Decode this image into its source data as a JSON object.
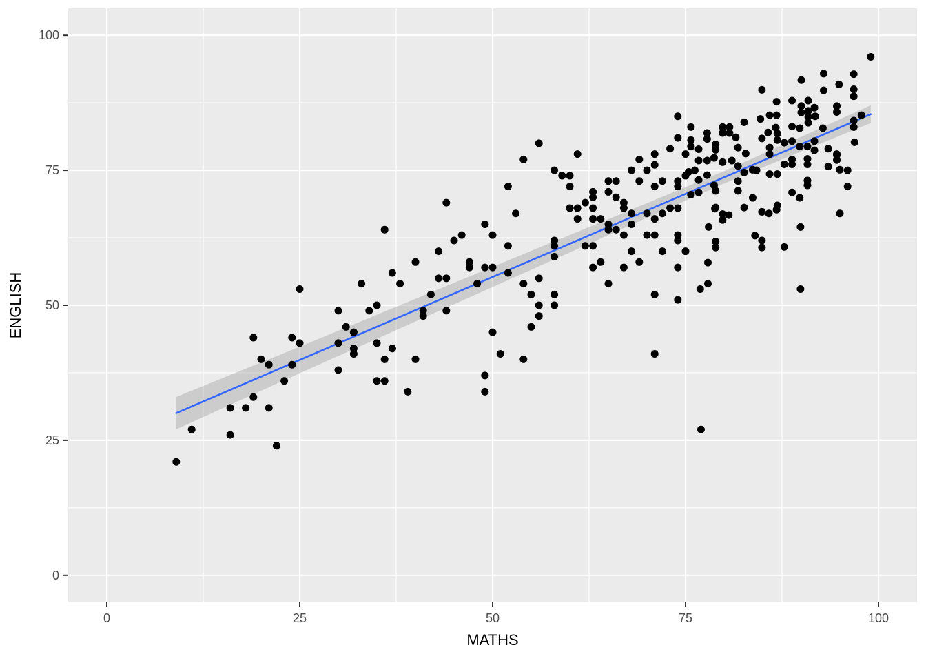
{
  "chart_data": {
    "type": "scatter",
    "title": "",
    "xlabel": "MATHS",
    "ylabel": "ENGLISH",
    "xlim": [
      -5,
      105
    ],
    "ylim": [
      -5,
      105
    ],
    "x_ticks": [
      0,
      25,
      50,
      75,
      100
    ],
    "y_ticks": [
      0,
      25,
      50,
      75,
      100
    ],
    "x_minor": [
      12.5,
      37.5,
      62.5,
      87.5
    ],
    "y_minor": [
      12.5,
      37.5,
      62.5,
      87.5
    ],
    "grid": true,
    "legend_position": "none",
    "colors": {
      "panel_bg": "#EBEBEB",
      "grid": "#FFFFFF",
      "point": "#000000",
      "smooth_line": "#3366FF",
      "ci_band": "#9B9B9B",
      "tick_mark": "#333333",
      "tick_text": "#4D4D4D",
      "axis_title": "#000000"
    },
    "smooth": {
      "model": "linear",
      "intercept": 24.5,
      "slope": 0.615,
      "x_start": 9,
      "x_end": 99,
      "band_opacity": 0.38,
      "band_half_widths": [
        [
          9,
          3.0
        ],
        [
          25,
          2.45
        ],
        [
          40,
          2.1
        ],
        [
          55,
          1.75
        ],
        [
          70,
          1.35
        ],
        [
          80,
          1.15
        ],
        [
          90,
          1.35
        ],
        [
          99,
          1.65
        ]
      ]
    },
    "points": [
      [
        9,
        21
      ],
      [
        11,
        27
      ],
      [
        16,
        26
      ],
      [
        16,
        31
      ],
      [
        18,
        31
      ],
      [
        19,
        33
      ],
      [
        19,
        44
      ],
      [
        20,
        40
      ],
      [
        21,
        39
      ],
      [
        21,
        31
      ],
      [
        22,
        24
      ],
      [
        23,
        36
      ],
      [
        24,
        44
      ],
      [
        24,
        39
      ],
      [
        25,
        43
      ],
      [
        30,
        49
      ],
      [
        30,
        43
      ],
      [
        30,
        38
      ],
      [
        31,
        46
      ],
      [
        32,
        45
      ],
      [
        32,
        42
      ],
      [
        32,
        41
      ],
      [
        25,
        53
      ],
      [
        33,
        54
      ],
      [
        34,
        49
      ],
      [
        35,
        50
      ],
      [
        35,
        43
      ],
      [
        35,
        36
      ],
      [
        36,
        64
      ],
      [
        36,
        40
      ],
      [
        36,
        36
      ],
      [
        37,
        56
      ],
      [
        37,
        42
      ],
      [
        38,
        54
      ],
      [
        39,
        34
      ],
      [
        40,
        58
      ],
      [
        40,
        40
      ],
      [
        41,
        49
      ],
      [
        41,
        48
      ],
      [
        42,
        52
      ],
      [
        43,
        60
      ],
      [
        43,
        55
      ],
      [
        44,
        69
      ],
      [
        44,
        55
      ],
      [
        44,
        49
      ],
      [
        45,
        62
      ],
      [
        46,
        63
      ],
      [
        47,
        58
      ],
      [
        47,
        57
      ],
      [
        48,
        54
      ],
      [
        49,
        65
      ],
      [
        49,
        57
      ],
      [
        49,
        37
      ],
      [
        49,
        34
      ],
      [
        50,
        63
      ],
      [
        50,
        57
      ],
      [
        50,
        45
      ],
      [
        51,
        41
      ],
      [
        52,
        72
      ],
      [
        52,
        61
      ],
      [
        52,
        56
      ],
      [
        53,
        67
      ],
      [
        54,
        77
      ],
      [
        54,
        54
      ],
      [
        54,
        40
      ],
      [
        55,
        52
      ],
      [
        55,
        46
      ],
      [
        56,
        80
      ],
      [
        56,
        55
      ],
      [
        56,
        50
      ],
      [
        56,
        48
      ],
      [
        58,
        75
      ],
      [
        58,
        62
      ],
      [
        58,
        61
      ],
      [
        58,
        59
      ],
      [
        58,
        52
      ],
      [
        58,
        50
      ],
      [
        59,
        74
      ],
      [
        60,
        74
      ],
      [
        60,
        72
      ],
      [
        60,
        68
      ],
      [
        61,
        78
      ],
      [
        61,
        68
      ],
      [
        61,
        66
      ],
      [
        62,
        69
      ],
      [
        62,
        61
      ],
      [
        63,
        71
      ],
      [
        63,
        70
      ],
      [
        63,
        68
      ],
      [
        63,
        66
      ],
      [
        63,
        61
      ],
      [
        63,
        57
      ],
      [
        64,
        66
      ],
      [
        64,
        58
      ],
      [
        65,
        73
      ],
      [
        65,
        71
      ],
      [
        65,
        65
      ],
      [
        65,
        64
      ],
      [
        65,
        54
      ],
      [
        66,
        73
      ],
      [
        66,
        70
      ],
      [
        66,
        64
      ],
      [
        67,
        69
      ],
      [
        67,
        68
      ],
      [
        67,
        63
      ],
      [
        67,
        57
      ],
      [
        68,
        75
      ],
      [
        68,
        67
      ],
      [
        68,
        65
      ],
      [
        68,
        60
      ],
      [
        69,
        77
      ],
      [
        69,
        73
      ],
      [
        69,
        58
      ],
      [
        70,
        75
      ],
      [
        70,
        67
      ],
      [
        70,
        63
      ],
      [
        71,
        78
      ],
      [
        71,
        76
      ],
      [
        71,
        72
      ],
      [
        71,
        66
      ],
      [
        71,
        63
      ],
      [
        71,
        52
      ],
      [
        71,
        41
      ],
      [
        72,
        73
      ],
      [
        72,
        67
      ],
      [
        72,
        60
      ],
      [
        73,
        79
      ],
      [
        73,
        68
      ],
      [
        74,
        85
      ],
      [
        74,
        81
      ],
      [
        74,
        73
      ],
      [
        74,
        72
      ],
      [
        74,
        68
      ],
      [
        74,
        63
      ],
      [
        74,
        62
      ],
      [
        74,
        57
      ],
      [
        74,
        51
      ],
      [
        75,
        78
      ],
      [
        75,
        74
      ],
      [
        75,
        60
      ],
      [
        77,
        27
      ],
      [
        75.4,
        74.7
      ],
      [
        75.7,
        83
      ],
      [
        75.7,
        80.6
      ],
      [
        75.7,
        79.4
      ],
      [
        75.7,
        70.5
      ],
      [
        76.2,
        75
      ],
      [
        76.7,
        78.9
      ],
      [
        76.7,
        76.8
      ],
      [
        76.7,
        73.2
      ],
      [
        76.7,
        70.9
      ],
      [
        76.9,
        53
      ],
      [
        77.8,
        81.9
      ],
      [
        77.8,
        80.8
      ],
      [
        77.8,
        76.8
      ],
      [
        77.8,
        74.1
      ],
      [
        77.9,
        57.9
      ],
      [
        77.9,
        54
      ],
      [
        78,
        64.5
      ],
      [
        78.7,
        77.3
      ],
      [
        78.7,
        72.2
      ],
      [
        78.8,
        67.9
      ],
      [
        78.9,
        79.8
      ],
      [
        78.9,
        78.8
      ],
      [
        78.9,
        71.2
      ],
      [
        78.9,
        68.1
      ],
      [
        78.9,
        61.8
      ],
      [
        78.9,
        60.7
      ],
      [
        79.8,
        83
      ],
      [
        79.8,
        81.9
      ],
      [
        79.8,
        76.5
      ],
      [
        79.8,
        66.9
      ],
      [
        79.8,
        65.8
      ],
      [
        80.6,
        66.7
      ],
      [
        80.7,
        83
      ],
      [
        80.7,
        81.9
      ],
      [
        81,
        76.8
      ],
      [
        81.5,
        81.1
      ],
      [
        81.8,
        79.2
      ],
      [
        81.8,
        75.8
      ],
      [
        81.8,
        73
      ],
      [
        81.8,
        71.2
      ],
      [
        82.6,
        83.9
      ],
      [
        82.6,
        74.6
      ],
      [
        82.6,
        68.1
      ],
      [
        82.8,
        78.1
      ],
      [
        83.7,
        75.1
      ],
      [
        83.7,
        69.9
      ],
      [
        84,
        62.9
      ],
      [
        84.2,
        75
      ],
      [
        84.7,
        84.5
      ],
      [
        84.9,
        80.9
      ],
      [
        84.9,
        67.3
      ],
      [
        84.9,
        62
      ],
      [
        84.9,
        60.7
      ],
      [
        85.8,
        67
      ],
      [
        85.7,
        82
      ],
      [
        85.9,
        79.2
      ],
      [
        85.9,
        78
      ],
      [
        85.9,
        74.3
      ],
      [
        86.7,
        82.9
      ],
      [
        86.8,
        67.7
      ],
      [
        86.9,
        81.8
      ],
      [
        86.9,
        80.6
      ],
      [
        86.9,
        74.3
      ],
      [
        86.9,
        68.5
      ],
      [
        87.8,
        80.1
      ],
      [
        87.8,
        76.1
      ],
      [
        87.8,
        60.8
      ],
      [
        88.8,
        83.1
      ],
      [
        88.8,
        80.4
      ],
      [
        88.8,
        77
      ],
      [
        88.8,
        76.1
      ],
      [
        88.8,
        70.9
      ],
      [
        89.8,
        82.8
      ],
      [
        89.8,
        79.4
      ],
      [
        89.8,
        69.9
      ],
      [
        89.9,
        64.5
      ],
      [
        89.9,
        53
      ],
      [
        90.8,
        79.4
      ],
      [
        90.8,
        77.1
      ],
      [
        90.8,
        76.1
      ],
      [
        90.8,
        73.1
      ],
      [
        90.8,
        72.2
      ],
      [
        99,
        96
      ],
      [
        92.9,
        92.9
      ],
      [
        96.8,
        92.8
      ],
      [
        90,
        91.7
      ],
      [
        94.9,
        90.9
      ],
      [
        84.9,
        89.9
      ],
      [
        92.9,
        89.8
      ],
      [
        96.8,
        90
      ],
      [
        96.8,
        88.7
      ],
      [
        86.8,
        87.7
      ],
      [
        88.8,
        87.9
      ],
      [
        90.9,
        87.9
      ],
      [
        90,
        86.9
      ],
      [
        90,
        85.7
      ],
      [
        91.7,
        86.6
      ],
      [
        90.9,
        86
      ],
      [
        91.8,
        85
      ],
      [
        94.6,
        86.9
      ],
      [
        94.6,
        85.8
      ],
      [
        85.9,
        85.2
      ],
      [
        86.8,
        85.2
      ],
      [
        90.9,
        84.9
      ],
      [
        90.9,
        83.8
      ],
      [
        97.8,
        85.2
      ],
      [
        96.8,
        84.2
      ],
      [
        96.8,
        83
      ],
      [
        92.8,
        82.8
      ],
      [
        91.7,
        80.4
      ],
      [
        91.7,
        78.7
      ],
      [
        93.5,
        79
      ],
      [
        93.5,
        75.7
      ],
      [
        94.6,
        78
      ],
      [
        94.6,
        76.9
      ],
      [
        96.9,
        80.2
      ],
      [
        95,
        75.1
      ],
      [
        96,
        75
      ],
      [
        94.6,
        77.8
      ],
      [
        95,
        67
      ],
      [
        96,
        72
      ]
    ]
  }
}
